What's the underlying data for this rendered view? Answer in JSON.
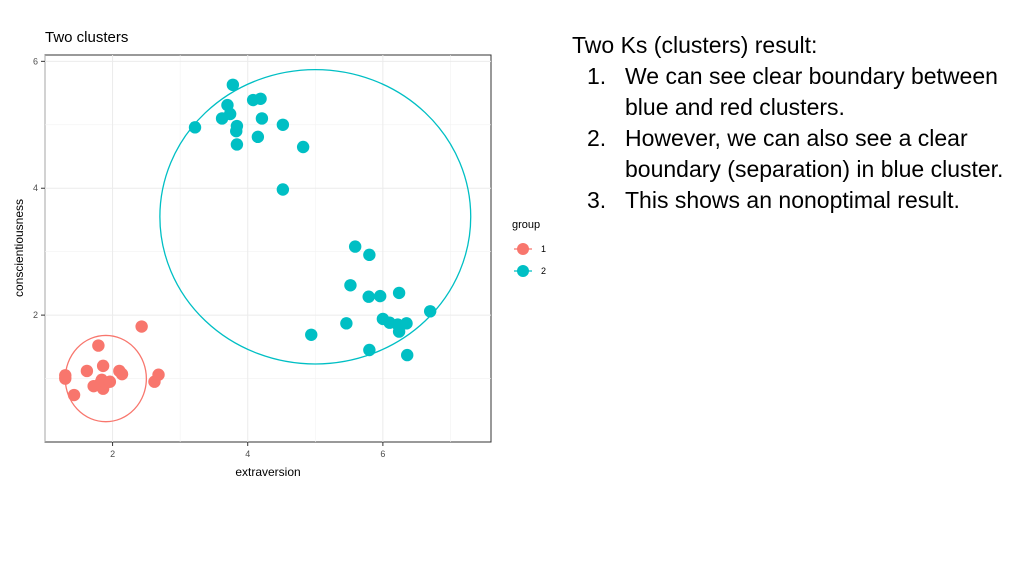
{
  "notes": {
    "heading": "Two Ks (clusters) result:",
    "items": [
      {
        "num": "1.",
        "text": "We can see clear boundary between blue and red clusters."
      },
      {
        "num": "2.",
        "text": "However, we can also see a clear boundary (separation) in blue cluster."
      },
      {
        "num": "3.",
        "text": "This shows an nonoptimal result."
      }
    ]
  },
  "chart_data": {
    "type": "scatter",
    "title": "Two clusters",
    "xlabel": "extraversion",
    "ylabel": "conscientiousness",
    "xlim": [
      1.0,
      7.6
    ],
    "ylim": [
      0.0,
      6.1
    ],
    "x_ticks": [
      2,
      4,
      6
    ],
    "y_ticks": [
      2,
      4,
      6
    ],
    "grid": true,
    "legend": {
      "title": "group",
      "placement": "right"
    },
    "colors": {
      "1": "#F8766D",
      "2": "#00BFC4"
    },
    "series": [
      {
        "name": "1",
        "points": [
          [
            1.3,
            1.0
          ],
          [
            1.3,
            1.05
          ],
          [
            1.43,
            0.74
          ],
          [
            1.62,
            1.12
          ],
          [
            1.72,
            0.88
          ],
          [
            1.79,
            1.52
          ],
          [
            1.82,
            0.93
          ],
          [
            1.84,
            0.98
          ],
          [
            1.86,
            0.84
          ],
          [
            1.86,
            1.2
          ],
          [
            1.9,
            0.93
          ],
          [
            1.96,
            0.95
          ],
          [
            2.1,
            1.12
          ],
          [
            2.14,
            1.07
          ],
          [
            2.43,
            1.82
          ],
          [
            2.62,
            0.95
          ],
          [
            2.68,
            1.06
          ]
        ]
      },
      {
        "name": "2",
        "points": [
          [
            3.22,
            4.96
          ],
          [
            3.62,
            5.1
          ],
          [
            3.7,
            5.31
          ],
          [
            3.74,
            5.17
          ],
          [
            3.78,
            5.63
          ],
          [
            3.83,
            4.9
          ],
          [
            3.84,
            4.98
          ],
          [
            3.84,
            4.69
          ],
          [
            4.08,
            5.39
          ],
          [
            4.15,
            4.81
          ],
          [
            4.19,
            5.41
          ],
          [
            4.21,
            5.1
          ],
          [
            4.52,
            5.0
          ],
          [
            4.52,
            3.98
          ],
          [
            4.82,
            4.65
          ],
          [
            4.94,
            1.69
          ],
          [
            5.46,
            1.87
          ],
          [
            5.52,
            2.47
          ],
          [
            5.59,
            3.08
          ],
          [
            5.79,
            2.29
          ],
          [
            5.8,
            1.45
          ],
          [
            5.8,
            2.95
          ],
          [
            5.96,
            2.3
          ],
          [
            6.0,
            1.94
          ],
          [
            6.1,
            1.88
          ],
          [
            6.22,
            1.85
          ],
          [
            6.24,
            2.35
          ],
          [
            6.24,
            1.74
          ],
          [
            6.35,
            1.87
          ],
          [
            6.36,
            1.37
          ],
          [
            6.7,
            2.06
          ]
        ]
      }
    ],
    "ellipses": [
      {
        "group": "1",
        "cx": 1.9,
        "cy": 1.0,
        "rx": 0.6,
        "ry": 0.68
      },
      {
        "group": "2",
        "cx": 5.0,
        "cy": 3.55,
        "rx": 2.3,
        "ry": 2.32
      }
    ]
  }
}
